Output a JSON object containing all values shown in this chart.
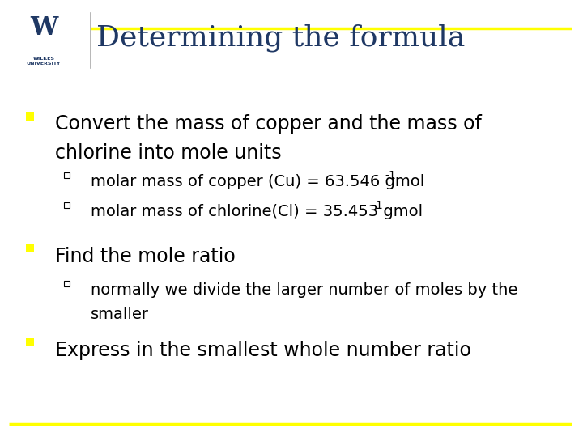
{
  "title": "Determining the formula",
  "title_color": "#1F3864",
  "title_fontsize": 26,
  "background_color": "#FFFFFF",
  "line_color": "#FFFF00",
  "bullet_color": "#FFFF00",
  "text_color": "#000000",
  "navy_color": "#1F3864",
  "gold_color": "#DAA520",
  "bullet1_line1": "Convert the mass of copper and the mass of",
  "bullet1_line2": "chlorine into mole units",
  "bullet1_sub1": "molar mass of copper (Cu) = 63.546 gmol",
  "bullet1_sub2": "molar mass of chlorine(Cl) = 35.453 gmol",
  "bullet2": "Find the mole ratio",
  "bullet2_sub1a": "normally we divide the larger number of moles by the",
  "bullet2_sub1b": "smaller",
  "bullet3": "Express in the smallest whole number ratio",
  "main_fontsize": 17,
  "sub_fontsize": 14,
  "title_font": "serif"
}
